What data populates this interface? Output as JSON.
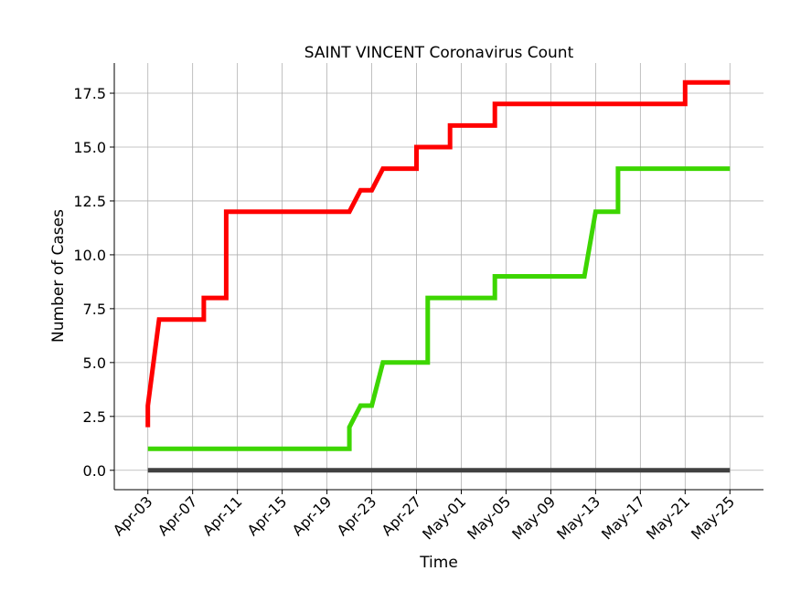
{
  "chart_data": {
    "type": "line",
    "title": "SAINT VINCENT Coronavirus Count",
    "xlabel": "Time",
    "ylabel": "Number of Cases",
    "x_start": "2020-04-03",
    "x_end": "2020-05-25",
    "xlim": [
      "2020-03-31",
      "2020-05-28"
    ],
    "ylim": [
      -0.9,
      18.9
    ],
    "x_ticks": [
      {
        "date": "2020-04-03",
        "label": "Apr-03"
      },
      {
        "date": "2020-04-07",
        "label": "Apr-07"
      },
      {
        "date": "2020-04-11",
        "label": "Apr-11"
      },
      {
        "date": "2020-04-15",
        "label": "Apr-15"
      },
      {
        "date": "2020-04-19",
        "label": "Apr-19"
      },
      {
        "date": "2020-04-23",
        "label": "Apr-23"
      },
      {
        "date": "2020-04-27",
        "label": "Apr-27"
      },
      {
        "date": "2020-05-01",
        "label": "May-01"
      },
      {
        "date": "2020-05-05",
        "label": "May-05"
      },
      {
        "date": "2020-05-09",
        "label": "May-09"
      },
      {
        "date": "2020-05-13",
        "label": "May-13"
      },
      {
        "date": "2020-05-17",
        "label": "May-17"
      },
      {
        "date": "2020-05-21",
        "label": "May-21"
      },
      {
        "date": "2020-05-25",
        "label": "May-25"
      }
    ],
    "y_ticks": [
      {
        "value": 0.0,
        "label": "0.0"
      },
      {
        "value": 2.5,
        "label": "2.5"
      },
      {
        "value": 5.0,
        "label": "5.0"
      },
      {
        "value": 7.5,
        "label": "7.5"
      },
      {
        "value": 10.0,
        "label": "10.0"
      },
      {
        "value": 12.5,
        "label": "12.5"
      },
      {
        "value": 15.0,
        "label": "15.0"
      },
      {
        "value": 17.5,
        "label": "17.5"
      }
    ],
    "grid": true,
    "series": [
      {
        "color": "#ff0000",
        "points": [
          [
            "2020-04-03",
            2
          ],
          [
            "2020-04-03",
            3
          ],
          [
            "2020-04-04",
            7
          ],
          [
            "2020-04-08",
            7
          ],
          [
            "2020-04-08",
            8
          ],
          [
            "2020-04-10",
            8
          ],
          [
            "2020-04-10",
            12
          ],
          [
            "2020-04-21",
            12
          ],
          [
            "2020-04-22",
            13
          ],
          [
            "2020-04-23",
            13
          ],
          [
            "2020-04-24",
            14
          ],
          [
            "2020-04-27",
            14
          ],
          [
            "2020-04-27",
            15
          ],
          [
            "2020-04-30",
            15
          ],
          [
            "2020-04-30",
            16
          ],
          [
            "2020-05-04",
            16
          ],
          [
            "2020-05-04",
            17
          ],
          [
            "2020-05-21",
            17
          ],
          [
            "2020-05-21",
            18
          ],
          [
            "2020-05-25",
            18
          ]
        ]
      },
      {
        "color": "#3dd600",
        "points": [
          [
            "2020-04-03",
            1
          ],
          [
            "2020-04-21",
            1
          ],
          [
            "2020-04-21",
            2
          ],
          [
            "2020-04-22",
            3
          ],
          [
            "2020-04-23",
            3
          ],
          [
            "2020-04-24",
            5
          ],
          [
            "2020-04-28",
            5
          ],
          [
            "2020-04-28",
            8
          ],
          [
            "2020-05-04",
            8
          ],
          [
            "2020-05-04",
            9
          ],
          [
            "2020-05-12",
            9
          ],
          [
            "2020-05-13",
            12
          ],
          [
            "2020-05-15",
            12
          ],
          [
            "2020-05-15",
            14
          ],
          [
            "2020-05-25",
            14
          ]
        ]
      },
      {
        "color": "#404040",
        "points": [
          [
            "2020-04-03",
            0
          ],
          [
            "2020-05-25",
            0
          ]
        ]
      }
    ]
  }
}
